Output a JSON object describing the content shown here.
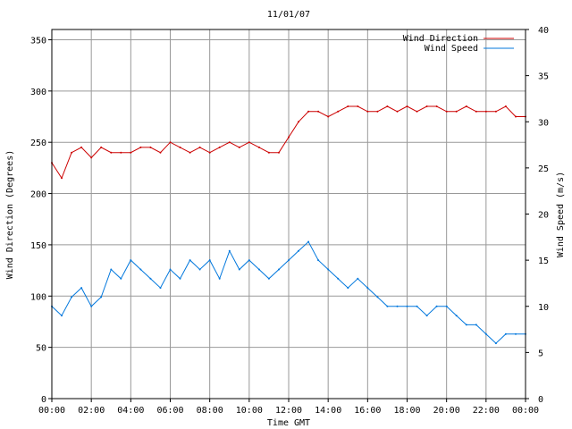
{
  "chart_data": {
    "type": "line",
    "title": "11/01/07",
    "xlabel": "Time GMT",
    "ylabel_left": "Wind Direction (Degrees)",
    "ylabel_right": "Wind Speed (m/s)",
    "x_ticks": [
      "00:00",
      "02:00",
      "04:00",
      "06:00",
      "08:00",
      "10:00",
      "12:00",
      "14:00",
      "16:00",
      "18:00",
      "20:00",
      "22:00",
      "00:00"
    ],
    "x_range_hours": [
      0,
      24
    ],
    "y_left_range": [
      0,
      360
    ],
    "y_left_ticks": [
      0,
      50,
      100,
      150,
      200,
      250,
      300,
      350
    ],
    "y_right_range": [
      0,
      40
    ],
    "y_right_ticks": [
      0,
      5,
      10,
      15,
      20,
      25,
      30,
      35,
      40
    ],
    "grid": true,
    "legend_position": "top-right",
    "series": [
      {
        "name": "Wind Direction",
        "axis": "left",
        "color": "#cc0000",
        "x": [
          0,
          0.5,
          1,
          1.5,
          2,
          2.5,
          3,
          3.5,
          4,
          4.5,
          5,
          5.5,
          6,
          6.5,
          7,
          7.5,
          8,
          8.5,
          9,
          9.5,
          10,
          10.5,
          11,
          11.5,
          12,
          12.5,
          13,
          13.5,
          14,
          14.5,
          15,
          15.5,
          16,
          16.5,
          17,
          17.5,
          18,
          18.5,
          19,
          19.5,
          20,
          20.5,
          21,
          21.5,
          22,
          22.5,
          23,
          23.5,
          24
        ],
        "y": [
          230,
          215,
          240,
          245,
          235,
          245,
          240,
          240,
          240,
          245,
          245,
          240,
          250,
          245,
          240,
          245,
          240,
          245,
          250,
          245,
          250,
          245,
          240,
          240,
          255,
          270,
          280,
          280,
          275,
          280,
          285,
          285,
          280,
          280,
          285,
          280,
          285,
          280,
          285,
          285,
          280,
          280,
          285,
          280,
          280,
          280,
          285,
          275,
          275
        ]
      },
      {
        "name": "Wind Speed",
        "axis": "right",
        "color": "#0077dd",
        "x": [
          0,
          0.5,
          1,
          1.5,
          2,
          2.5,
          3,
          3.5,
          4,
          4.5,
          5,
          5.5,
          6,
          6.5,
          7,
          7.5,
          8,
          8.5,
          9,
          9.5,
          10,
          10.5,
          11,
          11.5,
          12,
          12.5,
          13,
          13.5,
          14,
          14.5,
          15,
          15.5,
          16,
          16.5,
          17,
          17.5,
          18,
          18.5,
          19,
          19.5,
          20,
          20.5,
          21,
          21.5,
          22,
          22.5,
          23,
          23.5,
          24
        ],
        "y": [
          10,
          9,
          11,
          12,
          10,
          11,
          14,
          13,
          15,
          14,
          13,
          12,
          14,
          13,
          15,
          14,
          15,
          13,
          16,
          14,
          15,
          14,
          13,
          14,
          15,
          16,
          17,
          15,
          14,
          13,
          12,
          13,
          12,
          11,
          10,
          10,
          10,
          10,
          9,
          10,
          10,
          9,
          8,
          8,
          7,
          6,
          7,
          7,
          7
        ]
      }
    ]
  }
}
